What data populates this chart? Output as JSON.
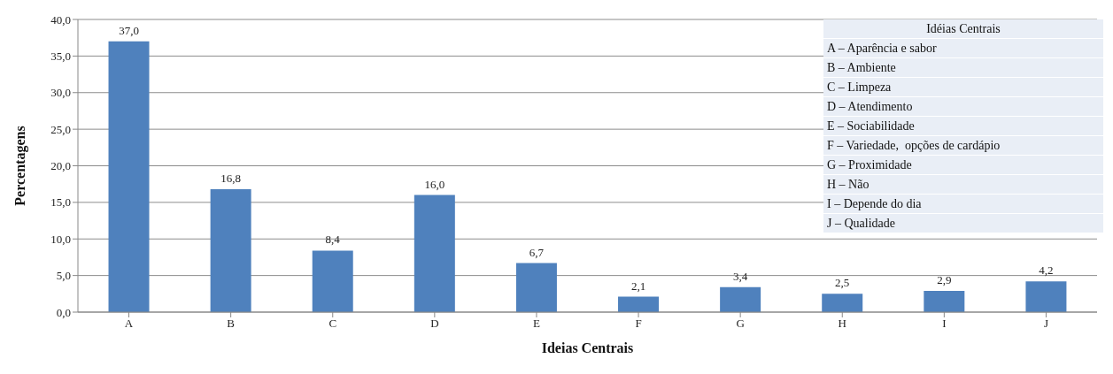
{
  "chart_data": {
    "type": "bar",
    "xlabel": "Ideias Centrais",
    "ylabel": "Percentagens",
    "categories": [
      "A",
      "B",
      "C",
      "D",
      "E",
      "F",
      "G",
      "H",
      "I",
      "J"
    ],
    "values": [
      37.0,
      16.8,
      8.4,
      16.0,
      6.7,
      2.1,
      3.4,
      2.5,
      2.9,
      4.2
    ],
    "value_labels": [
      "37,0",
      "16,8",
      "8,4",
      "16,0",
      "6,7",
      "2,1",
      "3,4",
      "2,5",
      "2,9",
      "4,2"
    ],
    "color": "#4f81bd",
    "ylim": [
      0,
      40
    ],
    "yticks": [
      {
        "value": 0,
        "label": "0,0"
      },
      {
        "value": 5,
        "label": "5,0"
      },
      {
        "value": 10,
        "label": "10,0"
      },
      {
        "value": 15,
        "label": "15,0"
      },
      {
        "value": 20,
        "label": "20,0"
      },
      {
        "value": 25,
        "label": "25,0"
      },
      {
        "value": 30,
        "label": "30,0"
      },
      {
        "value": 35,
        "label": "35,0"
      },
      {
        "value": 40,
        "label": "40,0"
      }
    ],
    "grid": "y",
    "annotations": [
      "Idéias Centrais",
      "A – Aparência e sabor",
      "B – Ambiente",
      "C – Limpeza",
      "D – Atendimento",
      "E – Sociabilidade",
      "F – Variedade,  opções de cardápio",
      "G – Proximidade",
      "H – Não",
      "I – Depende do dia",
      "J – Qualidade"
    ]
  }
}
